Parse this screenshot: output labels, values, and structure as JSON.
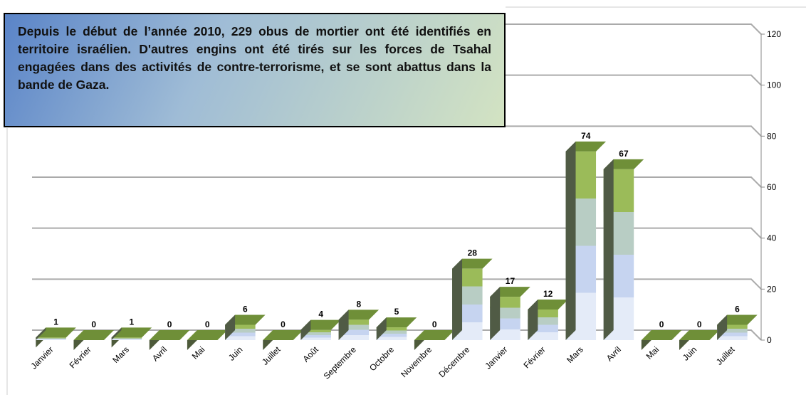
{
  "chart_data": {
    "type": "bar3d",
    "annotation": "Depuis le début de l’année 2010, 229 obus de mortier ont été identifiés en territoire israélien. D'autres engins ont été tirés sur les forces de Tsahal engagées dans des activités de contre-terrorisme, et se sont abattus dans la bande de Gaza.",
    "categories": [
      "Janvier",
      "Février",
      "Mars",
      "Avril",
      "Mai",
      "Juin",
      "Juillet",
      "Août",
      "Septembre",
      "Octobre",
      "Novembre",
      "Décembre",
      "Janvier",
      "Février",
      "Mars",
      "Avril",
      "Mai",
      "Juin",
      "Juillet"
    ],
    "values": [
      1,
      0,
      1,
      0,
      0,
      6,
      0,
      4,
      8,
      5,
      0,
      28,
      17,
      12,
      74,
      67,
      0,
      0,
      6
    ],
    "color": "#9bbb59",
    "ylim": [
      0,
      120
    ],
    "yticks": [
      0,
      20,
      40,
      60,
      80,
      100,
      120
    ],
    "grid": true
  }
}
